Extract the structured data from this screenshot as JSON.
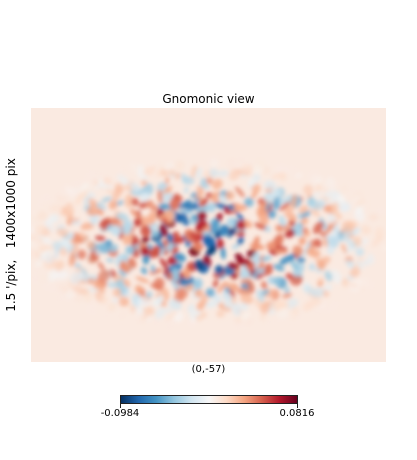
{
  "chart_data": {
    "type": "heatmap",
    "title": "Gnomonic view",
    "ylabel": {
      "resolution": "1.5 '/pix,",
      "size": "1400x1000 pix"
    },
    "xlabel": "(0,-57)",
    "colorbar": {
      "min": -0.0984,
      "max": 0.0816,
      "min_label": "-0.0984",
      "max_label": "0.0816",
      "colormap": "RdBu_r"
    },
    "background_value": 0.0,
    "grid": false
  }
}
